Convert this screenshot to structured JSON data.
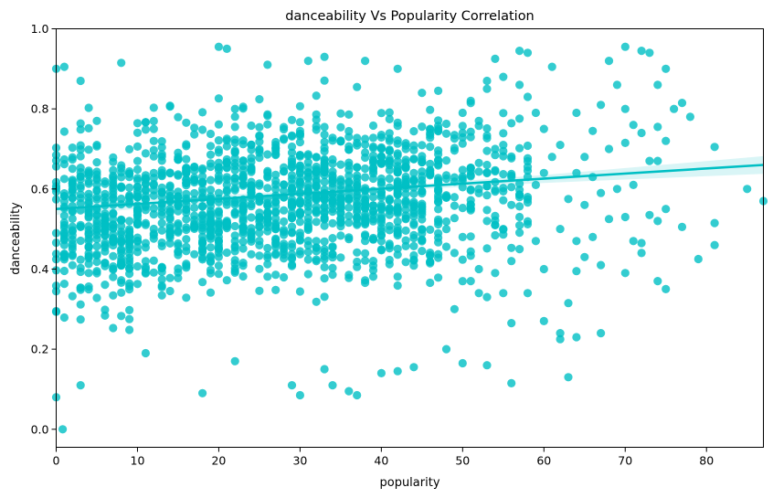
{
  "chart_data": {
    "type": "scatter",
    "title": "danceability Vs Popularity Correlation",
    "xlabel": "popularity",
    "ylabel": "danceability",
    "xlim": [
      0,
      87
    ],
    "ylim": [
      -0.045,
      1.0
    ],
    "xticks": [
      0,
      10,
      20,
      30,
      40,
      50,
      60,
      70,
      80
    ],
    "yticks": [
      0.0,
      0.2,
      0.4,
      0.6,
      0.8,
      1.0
    ],
    "grid": false,
    "color": "#00BFC4",
    "regression": {
      "x": [
        0,
        87
      ],
      "y": [
        0.55,
        0.66
      ],
      "ci_band": [
        {
          "x": 0,
          "lower": 0.535,
          "upper": 0.565
        },
        {
          "x": 40,
          "lower": 0.595,
          "upper": 0.605
        },
        {
          "x": 60,
          "lower": 0.615,
          "upper": 0.635
        },
        {
          "x": 87,
          "lower": 0.638,
          "upper": 0.682
        }
      ]
    },
    "points": [
      {
        "x": 0.8,
        "y": 0.0
      },
      {
        "x": 0,
        "y": 0.08
      },
      {
        "x": 3,
        "y": 0.11
      },
      {
        "x": 18,
        "y": 0.09
      },
      {
        "x": 29,
        "y": 0.11
      },
      {
        "x": 30,
        "y": 0.085
      },
      {
        "x": 34,
        "y": 0.11
      },
      {
        "x": 36,
        "y": 0.095
      },
      {
        "x": 37,
        "y": 0.085
      },
      {
        "x": 40,
        "y": 0.14
      },
      {
        "x": 42,
        "y": 0.145
      },
      {
        "x": 50,
        "y": 0.165
      },
      {
        "x": 53,
        "y": 0.16
      },
      {
        "x": 56,
        "y": 0.115
      },
      {
        "x": 63,
        "y": 0.13
      },
      {
        "x": 48,
        "y": 0.2
      },
      {
        "x": 44,
        "y": 0.155
      },
      {
        "x": 33,
        "y": 0.15
      },
      {
        "x": 22,
        "y": 0.17
      },
      {
        "x": 11,
        "y": 0.19
      },
      {
        "x": 0,
        "y": 0.9
      },
      {
        "x": 1,
        "y": 0.905
      },
      {
        "x": 8,
        "y": 0.915
      },
      {
        "x": 20,
        "y": 0.955
      },
      {
        "x": 21,
        "y": 0.95
      },
      {
        "x": 26,
        "y": 0.91
      },
      {
        "x": 31,
        "y": 0.92
      },
      {
        "x": 33,
        "y": 0.93
      },
      {
        "x": 38,
        "y": 0.92
      },
      {
        "x": 42,
        "y": 0.9
      },
      {
        "x": 57,
        "y": 0.945
      },
      {
        "x": 58,
        "y": 0.94
      },
      {
        "x": 61,
        "y": 0.905
      },
      {
        "x": 68,
        "y": 0.92
      },
      {
        "x": 70,
        "y": 0.955
      },
      {
        "x": 72,
        "y": 0.945
      },
      {
        "x": 73,
        "y": 0.94
      },
      {
        "x": 75,
        "y": 0.9
      },
      {
        "x": 54,
        "y": 0.925
      },
      {
        "x": 3,
        "y": 0.87
      },
      {
        "x": 64,
        "y": 0.79
      },
      {
        "x": 66,
        "y": 0.745
      },
      {
        "x": 67,
        "y": 0.81
      },
      {
        "x": 69,
        "y": 0.86
      },
      {
        "x": 70,
        "y": 0.8
      },
      {
        "x": 71,
        "y": 0.76
      },
      {
        "x": 74,
        "y": 0.86
      },
      {
        "x": 74,
        "y": 0.755
      },
      {
        "x": 76,
        "y": 0.8
      },
      {
        "x": 77,
        "y": 0.815
      },
      {
        "x": 78,
        "y": 0.78
      },
      {
        "x": 75,
        "y": 0.72
      },
      {
        "x": 72,
        "y": 0.74
      },
      {
        "x": 68,
        "y": 0.7
      },
      {
        "x": 70,
        "y": 0.715
      },
      {
        "x": 65,
        "y": 0.68
      },
      {
        "x": 73,
        "y": 0.67
      },
      {
        "x": 74,
        "y": 0.67
      },
      {
        "x": 81,
        "y": 0.705
      },
      {
        "x": 64,
        "y": 0.64
      },
      {
        "x": 66,
        "y": 0.63
      },
      {
        "x": 67,
        "y": 0.59
      },
      {
        "x": 69,
        "y": 0.6
      },
      {
        "x": 71,
        "y": 0.61
      },
      {
        "x": 85,
        "y": 0.6
      },
      {
        "x": 87,
        "y": 0.57
      },
      {
        "x": 63,
        "y": 0.575
      },
      {
        "x": 65,
        "y": 0.56
      },
      {
        "x": 68,
        "y": 0.525
      },
      {
        "x": 70,
        "y": 0.53
      },
      {
        "x": 73,
        "y": 0.535
      },
      {
        "x": 75,
        "y": 0.55
      },
      {
        "x": 74,
        "y": 0.52
      },
      {
        "x": 77,
        "y": 0.505
      },
      {
        "x": 81,
        "y": 0.515
      },
      {
        "x": 62,
        "y": 0.5
      },
      {
        "x": 64,
        "y": 0.47
      },
      {
        "x": 66,
        "y": 0.48
      },
      {
        "x": 71,
        "y": 0.47
      },
      {
        "x": 72,
        "y": 0.465
      },
      {
        "x": 81,
        "y": 0.46
      },
      {
        "x": 65,
        "y": 0.43
      },
      {
        "x": 67,
        "y": 0.41
      },
      {
        "x": 72,
        "y": 0.44
      },
      {
        "x": 79,
        "y": 0.425
      },
      {
        "x": 64,
        "y": 0.395
      },
      {
        "x": 70,
        "y": 0.39
      },
      {
        "x": 74,
        "y": 0.37
      },
      {
        "x": 75,
        "y": 0.35
      },
      {
        "x": 60,
        "y": 0.4
      },
      {
        "x": 63,
        "y": 0.315
      },
      {
        "x": 62,
        "y": 0.24
      },
      {
        "x": 62,
        "y": 0.225
      },
      {
        "x": 64,
        "y": 0.23
      },
      {
        "x": 67,
        "y": 0.24
      },
      {
        "x": 56,
        "y": 0.265
      },
      {
        "x": 60,
        "y": 0.27
      },
      {
        "x": 58,
        "y": 0.34
      },
      {
        "x": 55,
        "y": 0.34
      },
      {
        "x": 52,
        "y": 0.34
      },
      {
        "x": 53,
        "y": 0.33
      },
      {
        "x": 49,
        "y": 0.3
      },
      {
        "x": 51,
        "y": 0.37
      },
      {
        "x": 52,
        "y": 0.4
      },
      {
        "x": 54,
        "y": 0.39
      },
      {
        "x": 56,
        "y": 0.42
      },
      {
        "x": 57,
        "y": 0.45
      },
      {
        "x": 59,
        "y": 0.47
      },
      {
        "x": 55,
        "y": 0.5
      },
      {
        "x": 57,
        "y": 0.53
      },
      {
        "x": 58,
        "y": 0.58
      },
      {
        "x": 59,
        "y": 0.61
      },
      {
        "x": 60,
        "y": 0.64
      },
      {
        "x": 61,
        "y": 0.68
      },
      {
        "x": 62,
        "y": 0.71
      },
      {
        "x": 60,
        "y": 0.75
      },
      {
        "x": 59,
        "y": 0.79
      },
      {
        "x": 58,
        "y": 0.83
      },
      {
        "x": 57,
        "y": 0.86
      },
      {
        "x": 55,
        "y": 0.88
      },
      {
        "x": 53,
        "y": 0.85
      },
      {
        "x": 51,
        "y": 0.82
      },
      {
        "x": 52,
        "y": 0.77
      },
      {
        "x": 50,
        "y": 0.74
      },
      {
        "x": 54,
        "y": 0.7
      },
      {
        "x": 53,
        "y": 0.66
      },
      {
        "x": 56,
        "y": 0.63
      },
      {
        "x": 52,
        "y": 0.6
      },
      {
        "x": 51,
        "y": 0.56
      },
      {
        "x": 53,
        "y": 0.52
      },
      {
        "x": 50,
        "y": 0.48
      },
      {
        "x": 49,
        "y": 0.44
      }
    ],
    "clusters": [
      {
        "x_range": [
          0,
          10
        ],
        "y_range": [
          0.12,
          0.85
        ],
        "y_center": 0.52,
        "y_spread": 0.15,
        "count": 330
      },
      {
        "x_range": [
          10,
          20
        ],
        "y_range": [
          0.14,
          0.88
        ],
        "y_center": 0.55,
        "y_spread": 0.145,
        "count": 300
      },
      {
        "x_range": [
          20,
          30
        ],
        "y_range": [
          0.15,
          0.9
        ],
        "y_center": 0.58,
        "y_spread": 0.14,
        "count": 320
      },
      {
        "x_range": [
          30,
          40
        ],
        "y_range": [
          0.16,
          0.9
        ],
        "y_center": 0.58,
        "y_spread": 0.14,
        "count": 330
      },
      {
        "x_range": [
          40,
          48
        ],
        "y_range": [
          0.16,
          0.9
        ],
        "y_center": 0.6,
        "y_spread": 0.14,
        "count": 230
      },
      {
        "x_range": [
          48,
          58
        ],
        "y_range": [
          0.25,
          0.9
        ],
        "y_center": 0.61,
        "y_spread": 0.13,
        "count": 110
      }
    ]
  }
}
